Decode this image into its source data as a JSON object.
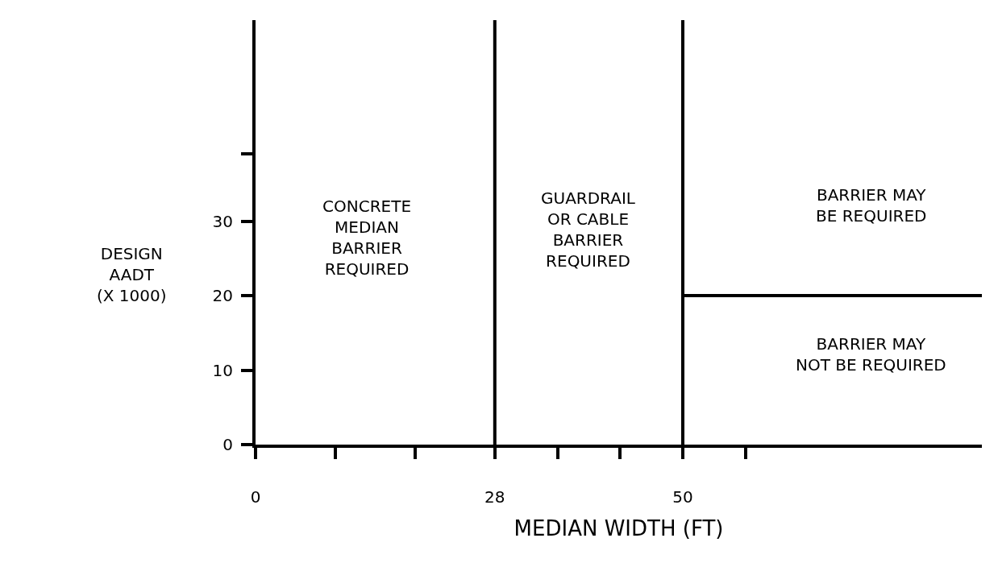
{
  "chart_data": {
    "type": "line",
    "xlabel": "MEDIAN WIDTH (FT)",
    "ylabel": "DESIGN\nAADT\n(X 1000)",
    "xlim": [
      0,
      85
    ],
    "ylim": [
      0,
      57
    ],
    "xticks": [
      0,
      {
        "value": 9.33,
        "label": null
      },
      {
        "value": 18.67,
        "label": null
      },
      28,
      {
        "value": 35.33,
        "label": null
      },
      {
        "value": 42.67,
        "label": null
      },
      50,
      {
        "value": 57.33,
        "label": null
      }
    ],
    "yticks": [
      0,
      10,
      20,
      30,
      {
        "value": 39,
        "label": null
      }
    ],
    "series": [
      {
        "x": [
          50,
          85
        ],
        "values": [
          20,
          20
        ],
        "color": "#000000"
      }
    ],
    "ref_lines": [
      {
        "axis": "x",
        "value": 28,
        "color": "#000000"
      },
      {
        "axis": "x",
        "value": 50,
        "color": "#000000"
      }
    ],
    "annotations": [
      "CONCRETE\nMEDIAN\nBARRIER\nREQUIRED",
      "GUARDRAIL\nOR CABLE\nBARRIER\nREQUIRED",
      "BARRIER MAY\nBE REQUIRED",
      "BARRIER MAY\nNOT BE REQUIRED"
    ],
    "grid": false,
    "marker": "none",
    "line_style": "solid"
  }
}
